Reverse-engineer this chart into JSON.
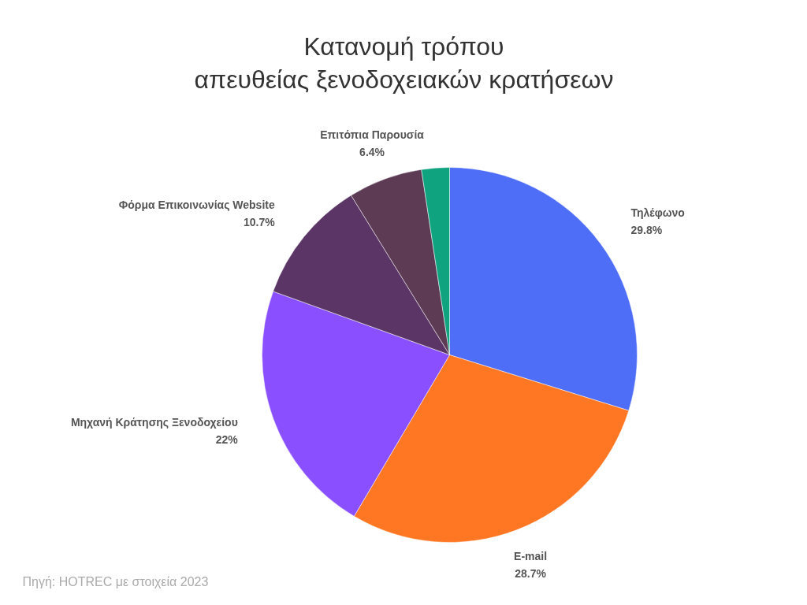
{
  "chart_data": {
    "type": "pie",
    "title": "Κατανομή τρόπου\nαπευθείας ξενοδοχειακών κρατήσεων",
    "categories": [
      "Τηλέφωνο",
      "E-mail",
      "Μηχανή Κράτησης Ξενοδοχείου",
      "Φόρμα Επικοινωνίας Website",
      "Επιτόπια Παρουσία",
      null
    ],
    "values": [
      29.8,
      28.7,
      22,
      10.7,
      6.4,
      2.4
    ],
    "value_labels": [
      "29.8%",
      "28.7%",
      "22%",
      "10.7%",
      "6.4%",
      null
    ],
    "colors": [
      "#4f6ef7",
      "#ff7722",
      "#8a4fff",
      "#5b3566",
      "#5d3b55",
      "#10a37f"
    ],
    "annotations": [
      "Πηγή: HOTREC με στοιχεία 2023"
    ]
  }
}
